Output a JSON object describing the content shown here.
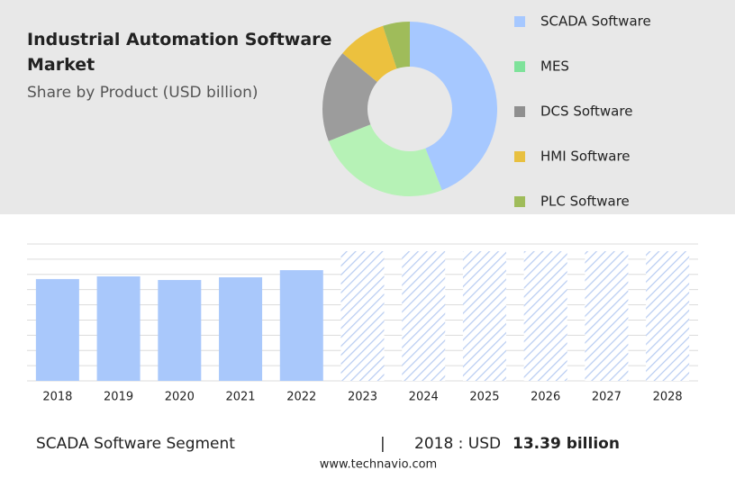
{
  "chart_data": [
    {
      "type": "pie",
      "title": "Industrial Automation Software Market",
      "subtitle": "Share by Product (USD billion)",
      "categories": [
        "SCADA Software",
        "MES",
        "DCS Software",
        "HMI Software",
        "PLC Software"
      ],
      "values": [
        44,
        25,
        17,
        9,
        5
      ],
      "colors": [
        "#a6c8ff",
        "#b6f2b6",
        "#9c9c9c",
        "#ecc13e",
        "#9fbc5a"
      ],
      "legend_colors": [
        "#a6c8ff",
        "#7ee29a",
        "#8f8f8f",
        "#e8c040",
        "#9fbc5a"
      ],
      "legend": "right"
    },
    {
      "type": "bar",
      "categories": [
        "2018",
        "2019",
        "2020",
        "2021",
        "2022",
        "2023",
        "2024",
        "2025",
        "2026",
        "2027",
        "2028"
      ],
      "values": [
        13.39,
        13.74,
        13.27,
        13.62,
        14.56,
        null,
        null,
        null,
        null,
        null,
        null
      ],
      "color": "#a9c8fb",
      "ylim": [
        0,
        18
      ],
      "yticks": [
        0,
        2,
        4,
        6,
        8,
        10,
        12,
        14,
        16,
        18
      ],
      "grid": true
    }
  ],
  "footer": {
    "segment": "SCADA Software Segment",
    "separator": "|",
    "year": "2018 : USD",
    "value": "13.39 billion",
    "site": "www.technavio.com"
  }
}
